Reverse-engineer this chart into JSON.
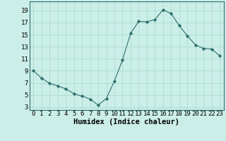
{
  "x": [
    0,
    1,
    2,
    3,
    4,
    5,
    6,
    7,
    8,
    9,
    10,
    11,
    12,
    13,
    14,
    15,
    16,
    17,
    18,
    19,
    20,
    21,
    22,
    23
  ],
  "y": [
    9.0,
    7.8,
    6.9,
    6.5,
    6.0,
    5.2,
    4.8,
    4.3,
    3.3,
    4.4,
    7.3,
    10.8,
    15.2,
    17.2,
    17.1,
    17.5,
    19.1,
    18.5,
    16.5,
    14.8,
    13.3,
    12.7,
    12.6,
    11.5
  ],
  "line_color": "#2e6e6e",
  "marker": "D",
  "marker_size": 2.2,
  "bg_color": "#cceee8",
  "grid_color": "#aaddcc",
  "xlabel": "Humidex (Indice chaleur)",
  "xlabel_fontsize": 7.5,
  "tick_fontsize": 6.5,
  "ylim": [
    2.5,
    20.5
  ],
  "xlim": [
    -0.5,
    23.5
  ],
  "yticks": [
    3,
    5,
    7,
    9,
    11,
    13,
    15,
    17,
    19
  ],
  "xticks": [
    0,
    1,
    2,
    3,
    4,
    5,
    6,
    7,
    8,
    9,
    10,
    11,
    12,
    13,
    14,
    15,
    16,
    17,
    18,
    19,
    20,
    21,
    22,
    23
  ],
  "xtick_labels": [
    "0",
    "1",
    "2",
    "3",
    "4",
    "5",
    "6",
    "7",
    "8",
    "9",
    "10",
    "11",
    "12",
    "13",
    "14",
    "15",
    "16",
    "17",
    "18",
    "19",
    "20",
    "21",
    "22",
    "23"
  ]
}
